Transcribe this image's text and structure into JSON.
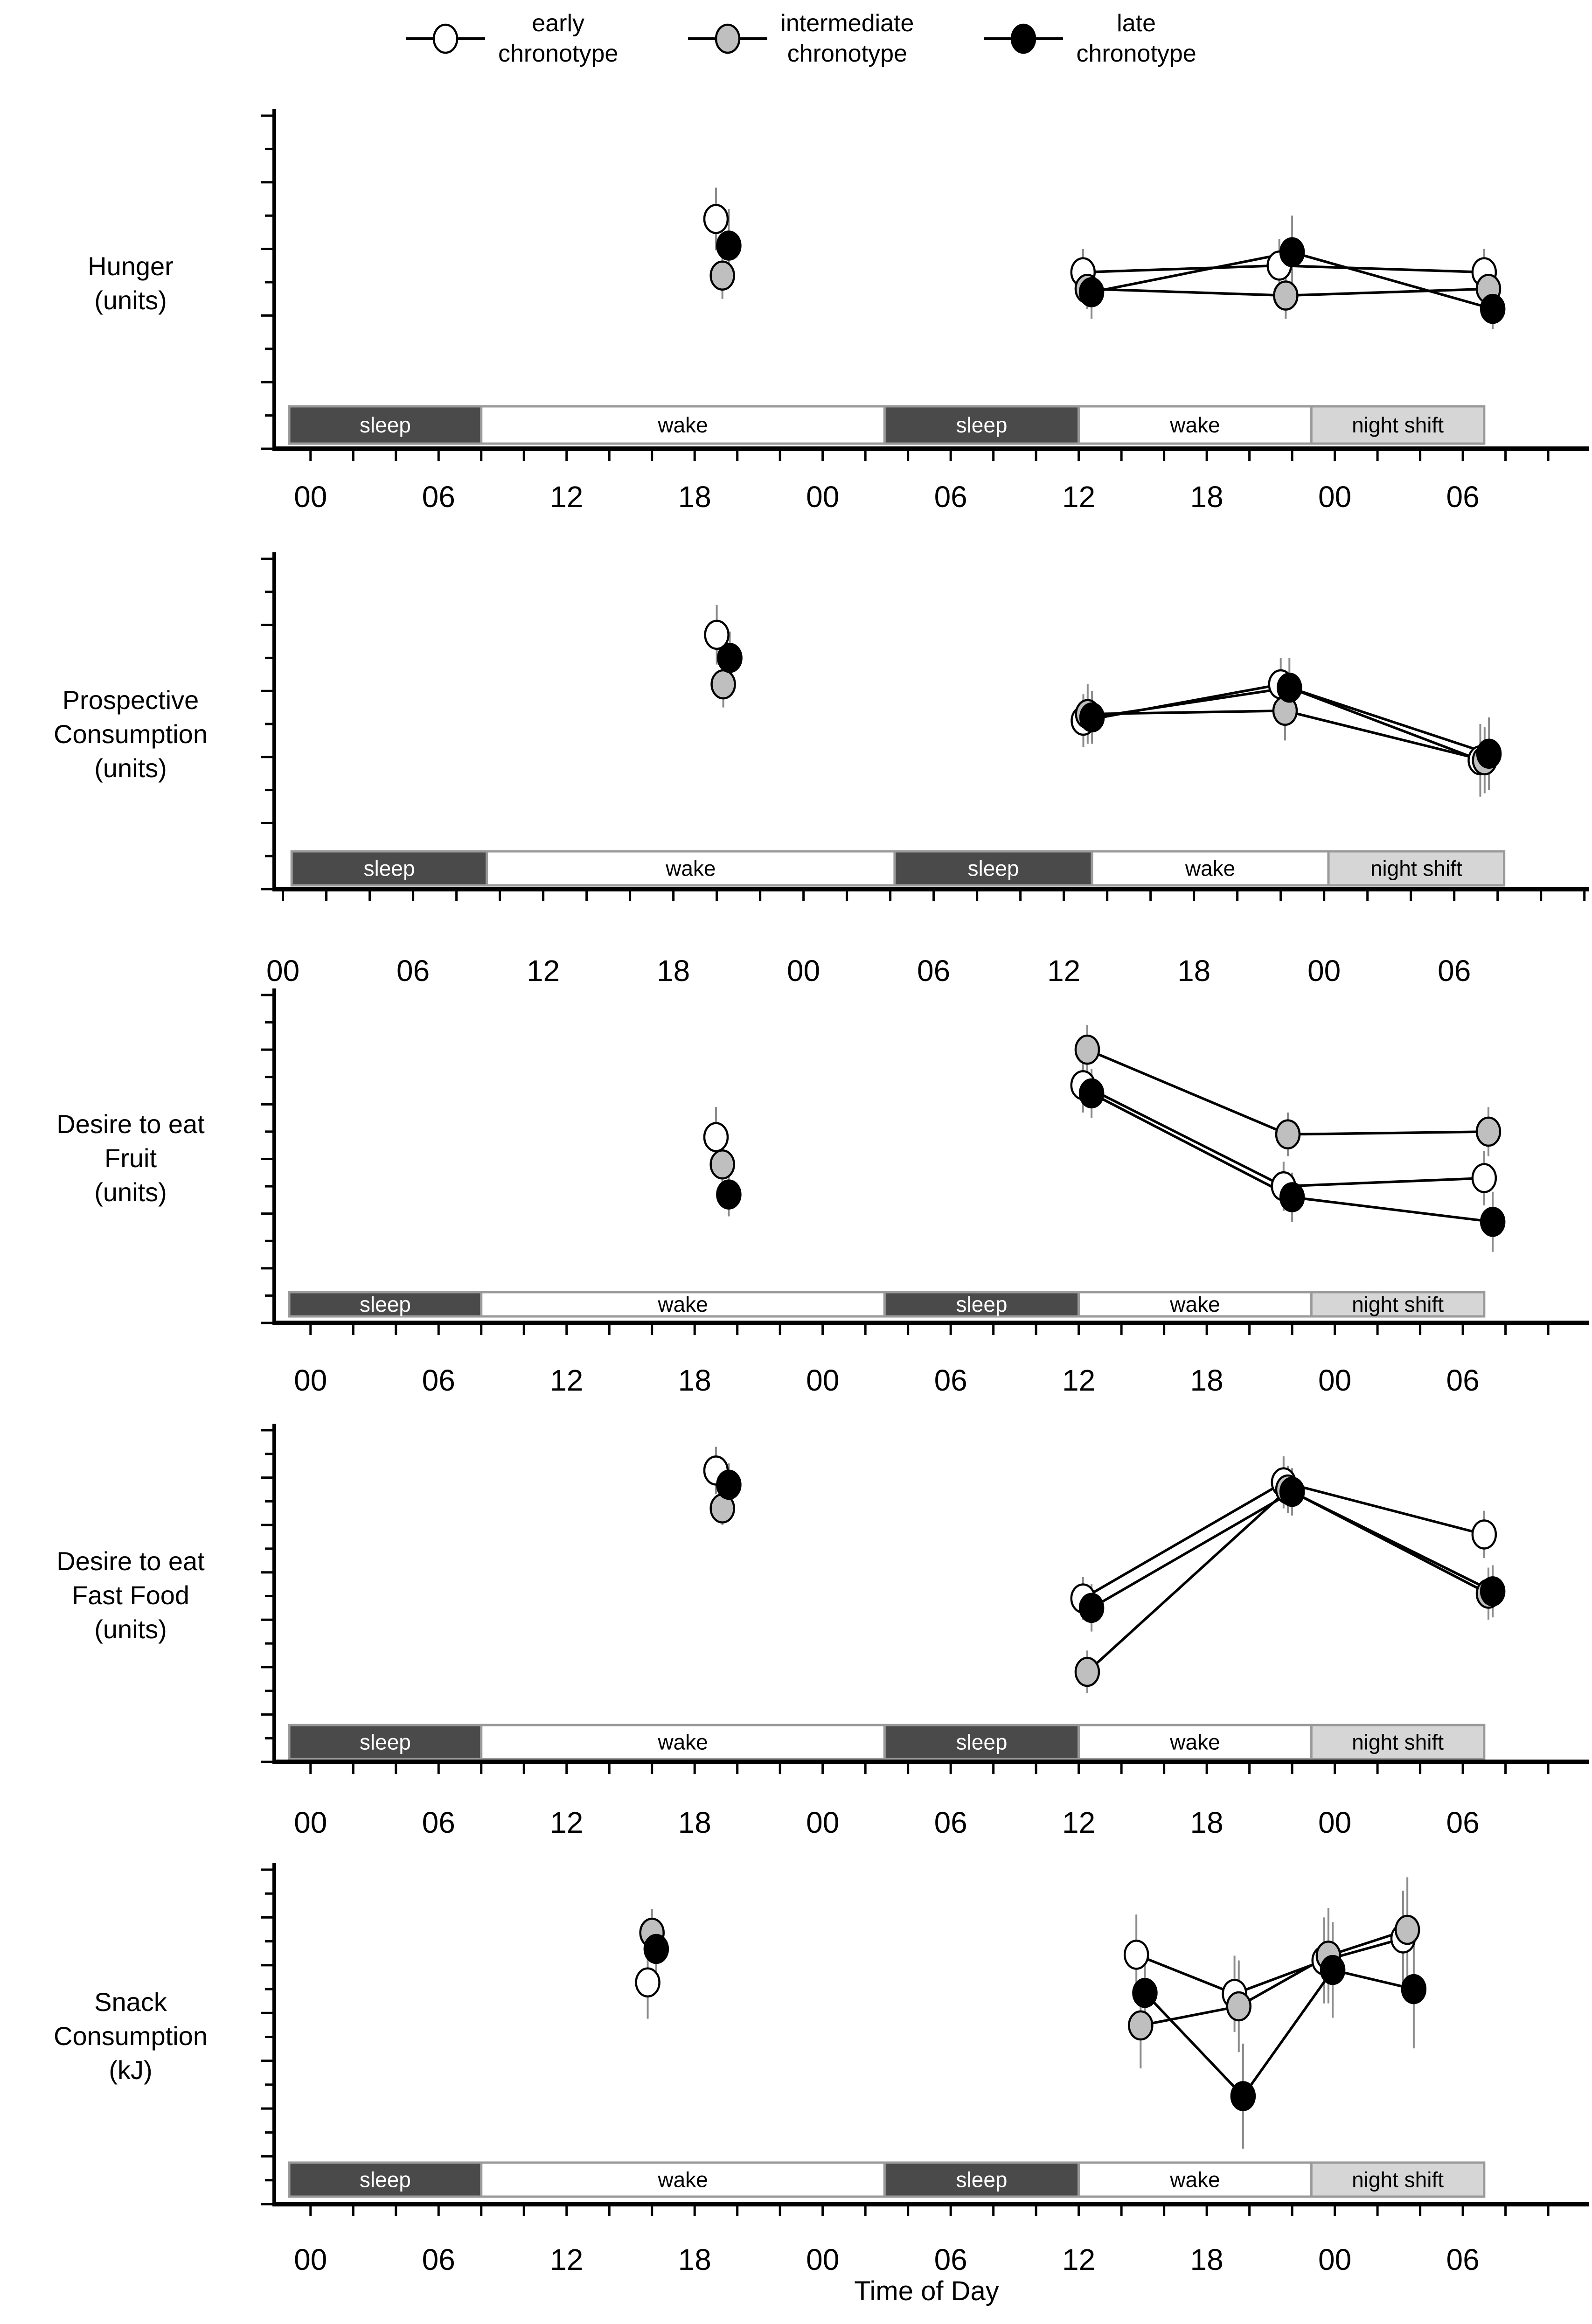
{
  "legend": {
    "items": [
      {
        "id": "early",
        "label": "early\nchronotype",
        "marker_fill": "#ffffff"
      },
      {
        "id": "intermediate",
        "label": "intermediate\nchronotype",
        "marker_fill": "#bfbfbf"
      },
      {
        "id": "late",
        "label": "late\nchronotype",
        "marker_fill": "#000000"
      }
    ]
  },
  "x_axis": {
    "title": "Time of Day",
    "tick_hours": [
      0,
      6,
      12,
      18,
      24,
      30,
      36,
      42,
      48,
      54
    ],
    "tick_labels": [
      "00",
      "06",
      "12",
      "18",
      "00",
      "06",
      "12",
      "18",
      "00",
      "06"
    ],
    "minor_tick_every_hours": 2
  },
  "schedule_bar_styles": {
    "sleep": {
      "fill": "#4a4a4a",
      "text": "#ffffff"
    },
    "wake": {
      "fill": "#ffffff",
      "text": "#000000"
    },
    "night shift": {
      "fill": "#d6d6d6",
      "text": "#000000"
    }
  },
  "chart_data": [
    {
      "type": "line",
      "name": "hunger",
      "ylabel": "Hunger\n(units)",
      "ylim": [
        40,
        90
      ],
      "ytick_step": 10,
      "yminor_step": 5,
      "t_range": [
        -1.7,
        59.9
      ],
      "schedule_bars": [
        {
          "label": "sleep",
          "from": -1,
          "to": 8
        },
        {
          "label": "wake",
          "from": 8,
          "to": 26.9
        },
        {
          "label": "sleep",
          "from": 26.9,
          "to": 36
        },
        {
          "label": "wake",
          "from": 36,
          "to": 46.9
        },
        {
          "label": "night shift",
          "from": 46.9,
          "to": 55
        }
      ],
      "series": [
        {
          "name": "early chronotype",
          "fill": "#ffffff",
          "connect_from_index": 1,
          "points": [
            {
              "t": 19.0,
              "v": 74.5,
              "err": 4.7
            },
            {
              "t": 36.2,
              "v": 66.5,
              "err": 3.5
            },
            {
              "t": 45.4,
              "v": 67.5,
              "err": 4.0
            },
            {
              "t": 55.0,
              "v": 66.5,
              "err": 3.5
            }
          ]
        },
        {
          "name": "intermediate chronotype",
          "fill": "#bfbfbf",
          "connect_from_index": 1,
          "points": [
            {
              "t": 19.3,
              "v": 66.0,
              "err": 3.5
            },
            {
              "t": 36.4,
              "v": 64.0,
              "err": 3.0
            },
            {
              "t": 45.7,
              "v": 63.0,
              "err": 3.5
            },
            {
              "t": 55.2,
              "v": 64.0,
              "err": 3.0
            }
          ]
        },
        {
          "name": "late chronotype",
          "fill": "#000000",
          "connect_from_index": 1,
          "points": [
            {
              "t": 19.6,
              "v": 70.5,
              "err": 5.5
            },
            {
              "t": 36.6,
              "v": 63.5,
              "err": 4.0
            },
            {
              "t": 46.0,
              "v": 69.5,
              "err": 5.5
            },
            {
              "t": 55.4,
              "v": 61.0,
              "err": 3.0
            }
          ]
        }
      ]
    },
    {
      "type": "line",
      "name": "prospective-consumption",
      "ylabel": "Prospective\nConsumption\n(units)",
      "ylim": [
        40,
        90
      ],
      "ytick_step": 10,
      "yminor_step": 5,
      "t_range": [
        -0.4,
        60.2
      ],
      "schedule_bars": [
        {
          "label": "sleep",
          "from": 0.4,
          "to": 9.4
        },
        {
          "label": "wake",
          "from": 9.4,
          "to": 28.2
        },
        {
          "label": "sleep",
          "from": 28.2,
          "to": 37.3
        },
        {
          "label": "wake",
          "from": 37.3,
          "to": 48.2
        },
        {
          "label": "night shift",
          "from": 48.2,
          "to": 56.3
        }
      ],
      "series": [
        {
          "name": "early chronotype",
          "fill": "#ffffff",
          "connect_from_index": 1,
          "points": [
            {
              "t": 20.0,
              "v": 78.5,
              "err": 4.5
            },
            {
              "t": 36.9,
              "v": 65.5,
              "err": 4.0
            },
            {
              "t": 46.0,
              "v": 71.0,
              "err": 4.0
            },
            {
              "t": 55.2,
              "v": 59.5,
              "err": 5.5
            }
          ]
        },
        {
          "name": "intermediate chronotype",
          "fill": "#bfbfbf",
          "connect_from_index": 1,
          "points": [
            {
              "t": 20.3,
              "v": 71.0,
              "err": 3.5
            },
            {
              "t": 37.1,
              "v": 66.5,
              "err": 4.5
            },
            {
              "t": 46.2,
              "v": 67.0,
              "err": 4.5
            },
            {
              "t": 55.4,
              "v": 59.5,
              "err": 5.0
            }
          ]
        },
        {
          "name": "late chronotype",
          "fill": "#000000",
          "connect_from_index": 1,
          "points": [
            {
              "t": 20.6,
              "v": 75.0,
              "err": 4.0
            },
            {
              "t": 37.3,
              "v": 66.0,
              "err": 4.0
            },
            {
              "t": 46.4,
              "v": 70.5,
              "err": 4.5
            },
            {
              "t": 55.6,
              "v": 60.5,
              "err": 5.5
            }
          ]
        }
      ]
    },
    {
      "type": "line",
      "name": "desire-fruit",
      "ylabel": "Desire to eat\nFruit\n(units)",
      "ylim": [
        30,
        90
      ],
      "ytick_step": 10,
      "yminor_step": 5,
      "t_range": [
        -1.7,
        59.9
      ],
      "schedule_bars": [
        {
          "label": "sleep",
          "from": -1,
          "to": 8
        },
        {
          "label": "wake",
          "from": 8,
          "to": 26.9
        },
        {
          "label": "sleep",
          "from": 26.9,
          "to": 36
        },
        {
          "label": "wake",
          "from": 36,
          "to": 46.9
        },
        {
          "label": "night shift",
          "from": 46.9,
          "to": 55
        }
      ],
      "series": [
        {
          "name": "early chronotype",
          "fill": "#ffffff",
          "connect_from_index": 1,
          "points": [
            {
              "t": 19.0,
              "v": 64.0,
              "err": 5.5
            },
            {
              "t": 36.2,
              "v": 73.5,
              "err": 5.0
            },
            {
              "t": 45.6,
              "v": 55.0,
              "err": 4.5
            },
            {
              "t": 55.0,
              "v": 56.5,
              "err": 5.0
            }
          ]
        },
        {
          "name": "intermediate chronotype",
          "fill": "#bfbfbf",
          "connect_from_index": 1,
          "points": [
            {
              "t": 19.3,
              "v": 59.0,
              "err": 4.5
            },
            {
              "t": 36.4,
              "v": 80.0,
              "err": 4.5
            },
            {
              "t": 45.8,
              "v": 64.5,
              "err": 4.0
            },
            {
              "t": 55.2,
              "v": 65.0,
              "err": 4.5
            }
          ]
        },
        {
          "name": "late chronotype",
          "fill": "#000000",
          "connect_from_index": 1,
          "points": [
            {
              "t": 19.6,
              "v": 53.5,
              "err": 4.0
            },
            {
              "t": 36.6,
              "v": 72.0,
              "err": 4.5
            },
            {
              "t": 46.0,
              "v": 53.0,
              "err": 4.5
            },
            {
              "t": 55.4,
              "v": 48.5,
              "err": 5.5
            }
          ]
        }
      ]
    },
    {
      "type": "line",
      "name": "desire-fast-food",
      "ylabel": "Desire to eat\nFast Food\n(units)",
      "ylim": [
        0,
        70
      ],
      "ytick_step": 10,
      "yminor_step": 5,
      "t_range": [
        -1.7,
        59.9
      ],
      "schedule_bars": [
        {
          "label": "sleep",
          "from": -1,
          "to": 8
        },
        {
          "label": "wake",
          "from": 8,
          "to": 26.9
        },
        {
          "label": "sleep",
          "from": 26.9,
          "to": 36
        },
        {
          "label": "wake",
          "from": 36,
          "to": 46.9
        },
        {
          "label": "night shift",
          "from": 46.9,
          "to": 55
        }
      ],
      "series": [
        {
          "name": "early chronotype",
          "fill": "#ffffff",
          "connect_from_index": 1,
          "points": [
            {
              "t": 19.0,
              "v": 61.5,
              "err": 5.0
            },
            {
              "t": 36.2,
              "v": 34.5,
              "err": 4.5
            },
            {
              "t": 45.6,
              "v": 59.0,
              "err": 5.5
            },
            {
              "t": 55.0,
              "v": 48.0,
              "err": 5.0
            }
          ]
        },
        {
          "name": "intermediate chronotype",
          "fill": "#bfbfbf",
          "connect_from_index": 1,
          "points": [
            {
              "t": 19.3,
              "v": 53.5,
              "err": 3.5
            },
            {
              "t": 36.4,
              "v": 19.0,
              "err": 4.5
            },
            {
              "t": 45.8,
              "v": 57.5,
              "err": 5.0
            },
            {
              "t": 55.2,
              "v": 35.5,
              "err": 5.5
            }
          ]
        },
        {
          "name": "late chronotype",
          "fill": "#000000",
          "connect_from_index": 1,
          "points": [
            {
              "t": 19.6,
              "v": 58.5,
              "err": 4.5
            },
            {
              "t": 36.6,
              "v": 32.5,
              "err": 5.0
            },
            {
              "t": 46.0,
              "v": 57.0,
              "err": 5.0
            },
            {
              "t": 55.4,
              "v": 36.0,
              "err": 5.5
            }
          ]
        }
      ]
    },
    {
      "type": "line",
      "name": "snack-consumption",
      "ylabel": "Snack\nConsumption\n(kJ)",
      "ylim": [
        250,
        600
      ],
      "ytick_step": 50,
      "yminor_step": 25,
      "t_range": [
        -1.7,
        59.9
      ],
      "schedule_bars": [
        {
          "label": "sleep",
          "from": -1,
          "to": 8
        },
        {
          "label": "wake",
          "from": 8,
          "to": 26.9
        },
        {
          "label": "sleep",
          "from": 26.9,
          "to": 36
        },
        {
          "label": "wake",
          "from": 36,
          "to": 46.9
        },
        {
          "label": "night shift",
          "from": 46.9,
          "to": 55
        }
      ],
      "series": [
        {
          "name": "early chronotype",
          "fill": "#ffffff",
          "connect_from_index": 1,
          "points": [
            {
              "t": 15.8,
              "v": 482,
              "err": 38
            },
            {
              "t": 38.7,
              "v": 511,
              "err": 42
            },
            {
              "t": 43.3,
              "v": 470,
              "err": 40
            },
            {
              "t": 47.5,
              "v": 505,
              "err": 45
            },
            {
              "t": 51.2,
              "v": 528,
              "err": 50
            }
          ]
        },
        {
          "name": "intermediate chronotype",
          "fill": "#bfbfbf",
          "connect_from_index": 1,
          "points": [
            {
              "t": 16.0,
              "v": 534,
              "err": 25
            },
            {
              "t": 38.9,
              "v": 437,
              "err": 45
            },
            {
              "t": 43.5,
              "v": 457,
              "err": 48
            },
            {
              "t": 47.7,
              "v": 510,
              "err": 50
            },
            {
              "t": 51.4,
              "v": 537,
              "err": 55
            }
          ]
        },
        {
          "name": "late chronotype",
          "fill": "#000000",
          "connect_from_index": 1,
          "points": [
            {
              "t": 16.2,
              "v": 517,
              "err": 28
            },
            {
              "t": 39.1,
              "v": 471,
              "err": 45
            },
            {
              "t": 43.7,
              "v": 363,
              "err": 55
            },
            {
              "t": 47.9,
              "v": 495,
              "err": 50
            },
            {
              "t": 51.7,
              "v": 475,
              "err": 62
            }
          ]
        }
      ]
    }
  ]
}
